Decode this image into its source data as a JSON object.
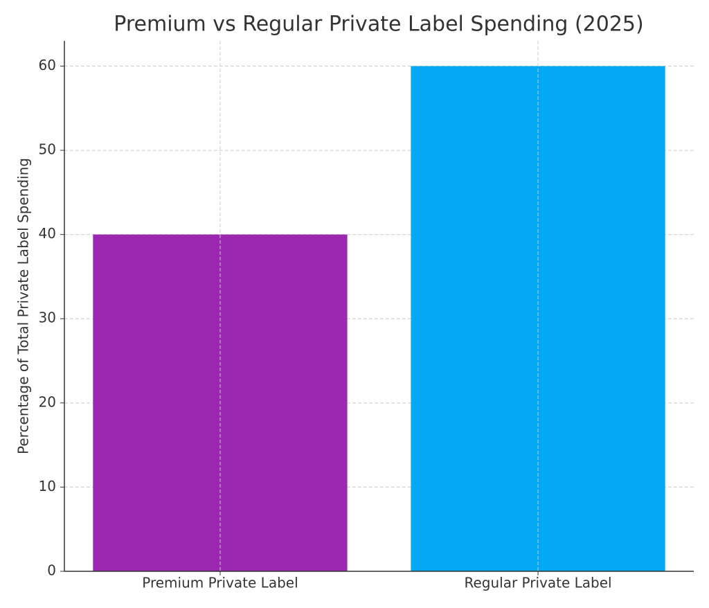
{
  "chart_data": {
    "type": "bar",
    "title": "Premium vs Regular Private Label Spending (2025)",
    "y_label": "Percentage of Total Private Label Spending",
    "categories": [
      "Premium Private Label",
      "Regular Private Label"
    ],
    "values": [
      40,
      60
    ],
    "colors": [
      "#9c27b0",
      "#03a9f4"
    ],
    "ylim": [
      0,
      63
    ],
    "yticks": [
      0,
      10,
      20,
      30,
      40,
      50,
      60
    ],
    "grid": true
  }
}
